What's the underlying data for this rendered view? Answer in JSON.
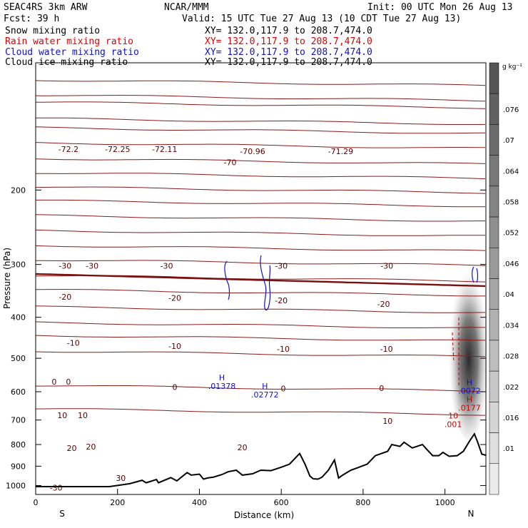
{
  "header": {
    "title": "SEAC4RS  3km ARW",
    "center": "NCAR/MMM",
    "init": "Init: 00 UTC Mon 26 Aug 13",
    "fcst": "Fcst:  39 h",
    "valid": "Valid: 15 UTC Tue 27 Aug 13 (10 CDT Tue 27 Aug 13)",
    "fields": [
      {
        "name": "Snow mixing ratio",
        "xy": "XY= 132.0,117.9 to 208.7,474.0",
        "color": "#000000"
      },
      {
        "name": "Rain water mixing ratio",
        "xy": "XY= 132.0,117.9 to 208.7,474.0",
        "color": "#e00000"
      },
      {
        "name": "Cloud water mixing ratio",
        "xy": "XY= 132.0,117.9 to 208.7,474.0",
        "color": "#1010cc"
      },
      {
        "name": "Cloud ice mixing ratio",
        "xy": "XY= 132.0,117.9 to 208.7,474.0",
        "color": "#000000"
      }
    ]
  },
  "chart_data": {
    "type": "contour",
    "xlabel": "Distance (km)",
    "ylabel": "Pressure (hPa)",
    "xlim": [
      0,
      1100
    ],
    "ylim": [
      1050,
      100
    ],
    "y_scale": "log",
    "x_ticks": [
      0,
      200,
      400,
      600,
      800,
      1000
    ],
    "x_tick_labels": [
      "0",
      "200",
      "400",
      "600",
      "800",
      "1000"
    ],
    "y_ticks": [
      200,
      300,
      400,
      500,
      600,
      700,
      800,
      900,
      1000
    ],
    "y_tick_labels": [
      "200",
      "300",
      "400",
      "500",
      "600",
      "700",
      "800",
      "900",
      "1000"
    ],
    "endpoint_labels": {
      "left": "S",
      "right": "N"
    },
    "colorbar": {
      "units": "g kg⁻¹",
      "ticks": [
        ".01",
        ".016",
        ".022",
        ".028",
        ".034",
        ".04",
        ".046",
        ".052",
        ".058",
        ".064",
        ".07",
        ".076"
      ]
    },
    "temperature_contours": [
      {
        "label": "-72.2",
        "x": 80,
        "p": 160
      },
      {
        "label": "-72.25",
        "x": 200,
        "p": 160
      },
      {
        "label": "-72.11",
        "x": 315,
        "p": 160
      },
      {
        "label": "-70",
        "x": 475,
        "p": 172
      },
      {
        "label": "-70.96",
        "x": 530,
        "p": 162
      },
      {
        "label": "-71.29",
        "x": 745,
        "p": 162
      },
      {
        "label": "-30",
        "x": 72,
        "p": 302
      },
      {
        "label": "-30",
        "x": 138,
        "p": 302
      },
      {
        "label": "-30",
        "x": 320,
        "p": 302
      },
      {
        "label": "-30",
        "x": 600,
        "p": 302
      },
      {
        "label": "-30",
        "x": 858,
        "p": 302
      },
      {
        "label": "-20",
        "x": 72,
        "p": 358
      },
      {
        "label": "-20",
        "x": 340,
        "p": 360
      },
      {
        "label": "-20",
        "x": 600,
        "p": 365
      },
      {
        "label": "-20",
        "x": 850,
        "p": 372
      },
      {
        "label": "-10",
        "x": 92,
        "p": 460
      },
      {
        "label": "-10",
        "x": 340,
        "p": 468
      },
      {
        "label": "-10",
        "x": 605,
        "p": 475
      },
      {
        "label": "-10",
        "x": 857,
        "p": 475
      },
      {
        "label": "0",
        "x": 45,
        "p": 568
      },
      {
        "label": "0",
        "x": 80,
        "p": 568
      },
      {
        "label": "0",
        "x": 340,
        "p": 585
      },
      {
        "label": "0",
        "x": 605,
        "p": 590
      },
      {
        "label": "0",
        "x": 845,
        "p": 588
      },
      {
        "label": "10",
        "x": 65,
        "p": 682
      },
      {
        "label": "10",
        "x": 115,
        "p": 682
      },
      {
        "label": "10",
        "x": 860,
        "p": 703
      },
      {
        "label": "20",
        "x": 88,
        "p": 815
      },
      {
        "label": "20",
        "x": 135,
        "p": 810
      },
      {
        "label": "20",
        "x": 505,
        "p": 812
      },
      {
        "label": "30",
        "x": 208,
        "p": 960
      },
      {
        "label": "-30",
        "x": 50,
        "p": 1012
      }
    ],
    "maxima": [
      {
        "label": "H",
        "value": ".01378",
        "x": 455,
        "p": 573,
        "color": "#1010cc"
      },
      {
        "label": "H",
        "value": ".02772",
        "x": 560,
        "p": 600,
        "color": "#1010cc"
      },
      {
        "label": "H",
        "value": ".0072",
        "x": 1060,
        "p": 587,
        "color": "#1010cc"
      },
      {
        "label": "H",
        "value": ".0177",
        "x": 1060,
        "p": 645,
        "color": "#cc0000"
      },
      {
        "label": "10",
        "value": ".001",
        "x": 1020,
        "p": 705,
        "color": "#cc0000"
      }
    ],
    "terrain_pressure": [
      [
        0,
        1006
      ],
      [
        180,
        1006
      ],
      [
        200,
        1000
      ],
      [
        230,
        990
      ],
      [
        260,
        972
      ],
      [
        270,
        985
      ],
      [
        295,
        968
      ],
      [
        300,
        985
      ],
      [
        330,
        958
      ],
      [
        345,
        975
      ],
      [
        370,
        932
      ],
      [
        380,
        945
      ],
      [
        400,
        940
      ],
      [
        410,
        966
      ],
      [
        420,
        960
      ],
      [
        435,
        955
      ],
      [
        455,
        942
      ],
      [
        470,
        928
      ],
      [
        490,
        920
      ],
      [
        505,
        945
      ],
      [
        530,
        938
      ],
      [
        550,
        920
      ],
      [
        575,
        922
      ],
      [
        600,
        905
      ],
      [
        620,
        890
      ],
      [
        645,
        840
      ],
      [
        658,
        890
      ],
      [
        670,
        950
      ],
      [
        678,
        964
      ],
      [
        690,
        966
      ],
      [
        700,
        955
      ],
      [
        715,
        920
      ],
      [
        730,
        870
      ],
      [
        740,
        960
      ],
      [
        750,
        945
      ],
      [
        770,
        920
      ],
      [
        790,
        905
      ],
      [
        810,
        890
      ],
      [
        830,
        850
      ],
      [
        845,
        840
      ],
      [
        860,
        830
      ],
      [
        870,
        800
      ],
      [
        890,
        808
      ],
      [
        900,
        790
      ],
      [
        920,
        815
      ],
      [
        945,
        800
      ],
      [
        955,
        820
      ],
      [
        970,
        850
      ],
      [
        985,
        850
      ],
      [
        995,
        835
      ],
      [
        1010,
        853
      ],
      [
        1030,
        850
      ],
      [
        1045,
        830
      ],
      [
        1060,
        785
      ],
      [
        1072,
        755
      ],
      [
        1080,
        790
      ],
      [
        1090,
        843
      ],
      [
        1100,
        848
      ]
    ]
  }
}
